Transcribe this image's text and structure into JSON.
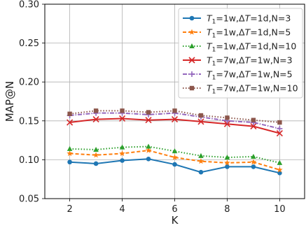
{
  "chart_data": {
    "type": "line",
    "title": "",
    "xlabel": "K",
    "ylabel": "MAP@N",
    "x": [
      2,
      3,
      4,
      5,
      6,
      7,
      8,
      9,
      10
    ],
    "xlim": [
      1.05,
      10.95
    ],
    "ylim": [
      0.05,
      0.3
    ],
    "xticks": [
      2,
      4,
      6,
      8,
      10
    ],
    "yticks": [
      0.05,
      0.1,
      0.15,
      0.2,
      0.25,
      0.3
    ],
    "ytick_labels": [
      "0.05",
      "0.10",
      "0.15",
      "0.20",
      "0.25",
      "0.30"
    ],
    "grid": true,
    "legend_position": "top-right",
    "series": [
      {
        "name": "T1=1w,ΔT=1d,N=3",
        "name_parts": [
          "T",
          "1",
          "=1w,Δ",
          "T",
          "=1d,N=3"
        ],
        "color": "#1f77b4",
        "linestyle": "solid",
        "marker": "circle",
        "values": [
          0.097,
          0.095,
          0.099,
          0.101,
          0.094,
          0.084,
          0.091,
          0.091,
          0.083
        ]
      },
      {
        "name": "T1=1w,ΔT=1d,N=5",
        "name_parts": [
          "T",
          "1",
          "=1w,Δ",
          "T",
          "=1d,N=5"
        ],
        "color": "#ff7f0e",
        "linestyle": "dashed",
        "marker": "star",
        "values": [
          0.108,
          0.106,
          0.108,
          0.112,
          0.103,
          0.098,
          0.096,
          0.097,
          0.087
        ]
      },
      {
        "name": "T1=1w,ΔT=1d,N=10",
        "name_parts": [
          "T",
          "1",
          "=1w,Δ",
          "T",
          "=1d,N=10"
        ],
        "color": "#2ca02c",
        "linestyle": "dotted",
        "marker": "triangle",
        "values": [
          0.114,
          0.113,
          0.116,
          0.117,
          0.111,
          0.105,
          0.103,
          0.104,
          0.096
        ]
      },
      {
        "name": "T1=7w,ΔT=1w,N=3",
        "name_parts": [
          "T",
          "1",
          "=7w,Δ",
          "T",
          "=1w,N=3"
        ],
        "color": "#d62728",
        "linestyle": "solid",
        "marker": "x",
        "values": [
          0.148,
          0.152,
          0.153,
          0.151,
          0.152,
          0.149,
          0.146,
          0.143,
          0.134
        ]
      },
      {
        "name": "T1=7w,ΔT=1w,N=5",
        "name_parts": [
          "T",
          "1",
          "=7w,Δ",
          "T",
          "=1w,N=5"
        ],
        "color": "#9467bd",
        "linestyle": "dashdot",
        "marker": "plus",
        "values": [
          0.157,
          0.16,
          0.16,
          0.158,
          0.16,
          0.155,
          0.15,
          0.148,
          0.14
        ]
      },
      {
        "name": "T1=7w,ΔT=1w,N=10",
        "name_parts": [
          "T",
          "1",
          "=7w,Δ",
          "T",
          "=1w,N=10"
        ],
        "color": "#8c564b",
        "linestyle": "dotted",
        "marker": "square",
        "values": [
          0.159,
          0.163,
          0.163,
          0.161,
          0.163,
          0.157,
          0.154,
          0.151,
          0.148
        ]
      }
    ]
  }
}
